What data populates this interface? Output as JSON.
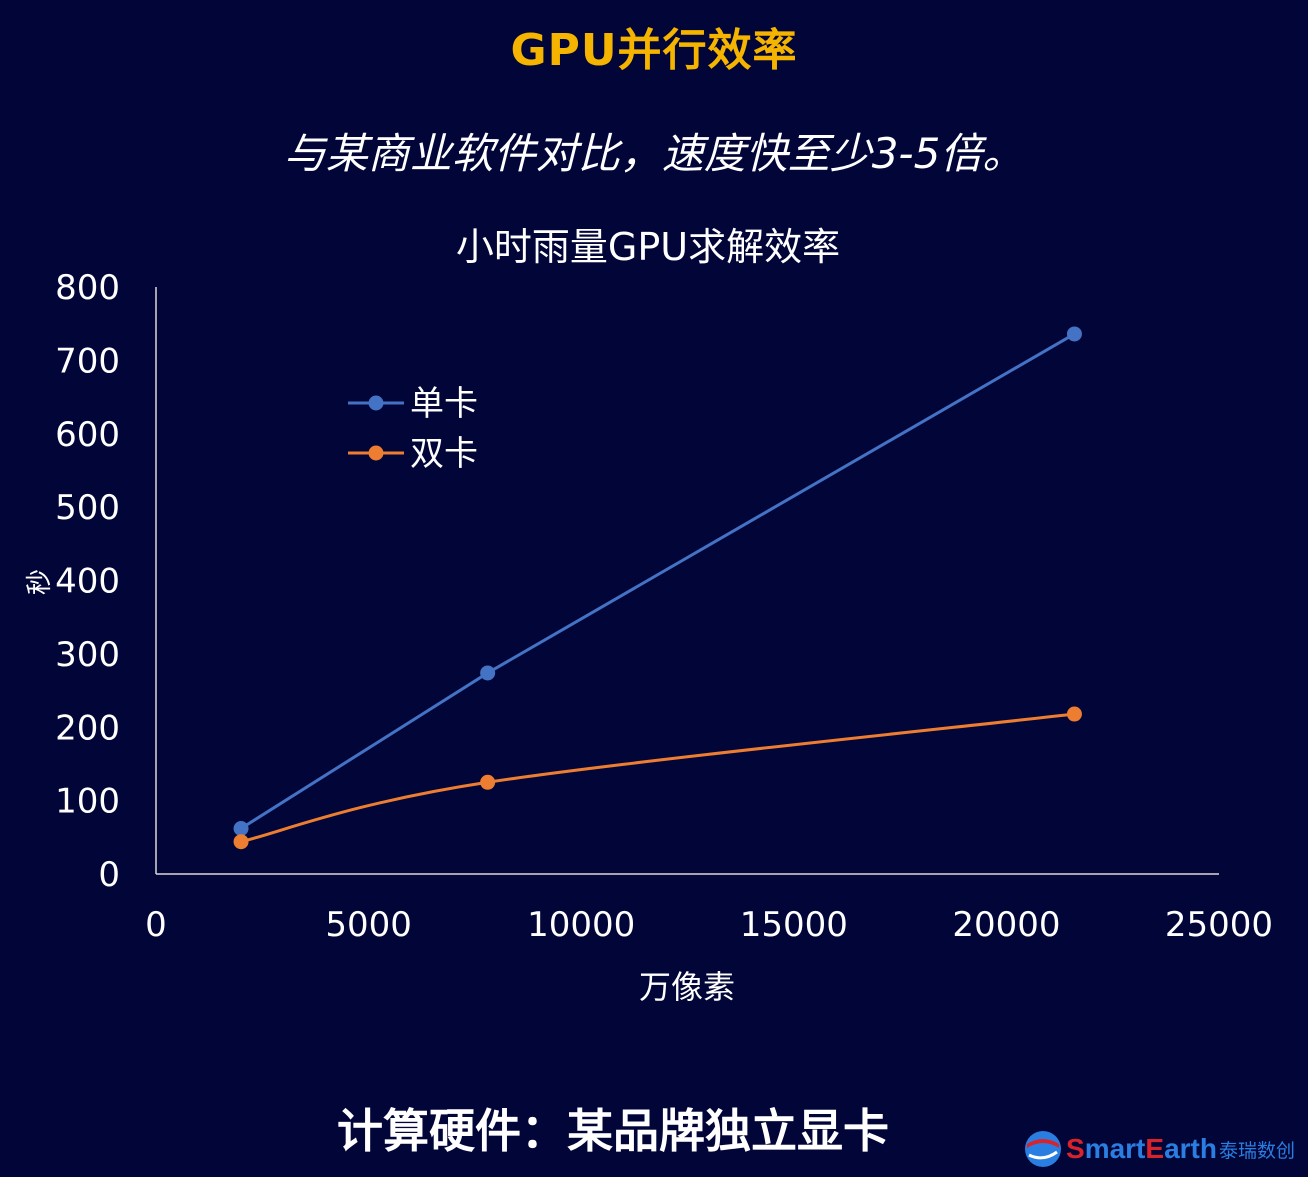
{
  "page": {
    "heading": "GPU并行效率",
    "subheading": "与某商业软件对比，速度快至少3-5倍。",
    "footer": "计算硬件：某品牌独立显卡",
    "logo": {
      "word_a": "S",
      "word_b": "mart",
      "word_c": "E",
      "word_d": "arth",
      "cn": "泰瑞数创"
    }
  },
  "chart_data": {
    "type": "line",
    "title": "小时雨量GPU求解效率",
    "xlabel": "万像素",
    "ylabel": "秒",
    "xlim": [
      0,
      25000
    ],
    "ylim": [
      0,
      800
    ],
    "xticks": [
      0,
      5000,
      10000,
      15000,
      20000,
      25000
    ],
    "yticks": [
      0,
      100,
      200,
      300,
      400,
      500,
      600,
      700,
      800
    ],
    "grid": false,
    "legend_position": "top-left",
    "series": [
      {
        "name": "单卡",
        "color": "#4472c4",
        "points": [
          [
            2000,
            62
          ],
          [
            7800,
            274
          ],
          [
            21600,
            736
          ]
        ]
      },
      {
        "name": "双卡",
        "color": "#ed7d31",
        "points": [
          [
            2000,
            44
          ],
          [
            7800,
            125
          ],
          [
            21600,
            218
          ]
        ]
      }
    ]
  }
}
